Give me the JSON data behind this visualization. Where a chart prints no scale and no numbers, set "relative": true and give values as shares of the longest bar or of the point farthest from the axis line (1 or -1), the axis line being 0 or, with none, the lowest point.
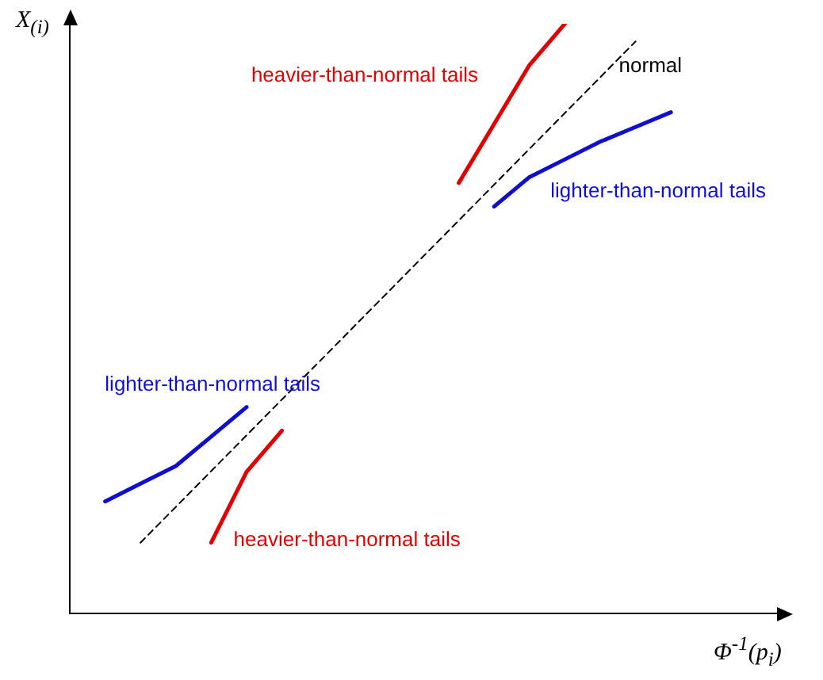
{
  "chart_data": {
    "type": "line",
    "relative": true,
    "xlabel": "Φ$^{-1}$(p$_{i}$)",
    "ylabel": "X$_{(i)}$",
    "grid": false,
    "legend": false,
    "marker": "none",
    "categories": [
      null,
      null,
      null,
      null,
      null,
      null,
      null,
      null,
      null,
      null,
      null,
      null,
      null,
      null,
      null,
      null,
      null,
      null,
      null,
      null,
      null
    ],
    "series": [
      {
        "color": "#000000",
        "line_style": "dashed",
        "values": [
          null,
          null,
          0.12,
          null,
          null,
          null,
          null,
          null,
          null,
          null,
          null,
          null,
          null,
          null,
          null,
          null,
          0.97,
          null,
          null,
          null,
          null
        ]
      },
      {
        "color": "#e00000",
        "values": [
          null,
          null,
          null,
          null,
          null,
          null,
          null,
          null,
          null,
          null,
          null,
          0.73,
          0.83,
          0.93,
          1.0,
          null,
          null,
          null,
          null,
          null,
          null
        ]
      },
      {
        "color": "#1010cc",
        "values": [
          null,
          null,
          null,
          null,
          null,
          null,
          null,
          null,
          null,
          null,
          null,
          null,
          0.69,
          0.74,
          0.77,
          0.8,
          0.825,
          0.85,
          null,
          null,
          null
        ]
      },
      {
        "color": "#1010cc",
        "values": [
          null,
          0.19,
          0.22,
          0.25,
          0.3,
          0.35,
          null,
          null,
          null,
          null,
          null,
          null,
          null,
          null,
          null,
          null,
          null,
          null,
          null,
          null,
          null
        ]
      },
      {
        "color": "#e00000",
        "values": [
          null,
          null,
          null,
          null,
          0.12,
          0.24,
          0.31,
          null,
          null,
          null,
          null,
          null,
          null,
          null,
          null,
          null,
          null,
          null,
          null,
          null,
          null
        ]
      }
    ],
    "annotations": [
      "heavier-than-normal tails",
      "normal",
      "lighter-than-normal tails",
      "lighter-than-normal tails",
      "heavier-than-normal tails"
    ]
  }
}
